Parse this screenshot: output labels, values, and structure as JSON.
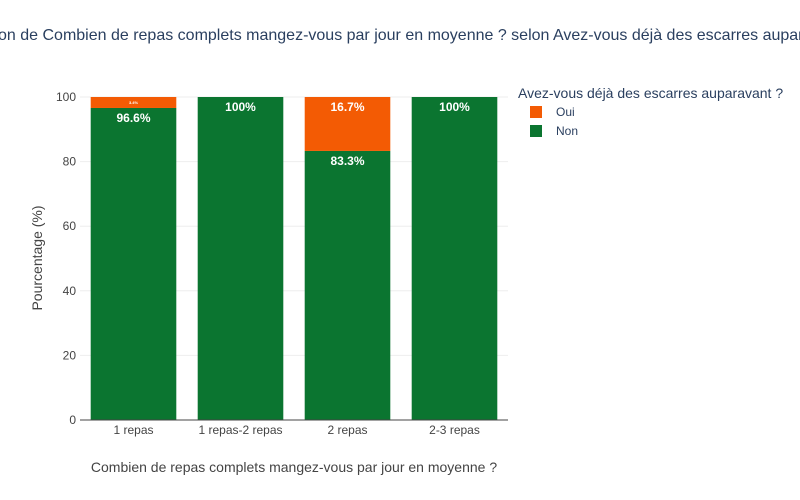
{
  "chart_data": {
    "type": "bar",
    "stacked": true,
    "title": "on de Combien de repas complets mangez-vous par jour en moyenne ? selon Avez-vous déjà des escarres aupar",
    "xlabel": "Combien de repas complets mangez-vous par jour en moyenne ?",
    "ylabel": "Pourcentage (%)",
    "ylim": [
      0,
      100
    ],
    "yticks": [
      "0",
      "20",
      "40",
      "60",
      "80",
      "100"
    ],
    "categories": [
      "1 repas",
      "1 repas-2 repas",
      "2 repas",
      "2-3 repas"
    ],
    "legend": {
      "title": "Avez-vous déjà des escarres auparavant ?",
      "position": "top-right"
    },
    "grid": true,
    "series": [
      {
        "name": "Non",
        "color": "#0b7530",
        "values": [
          96.6,
          100,
          83.3,
          100
        ],
        "labels": [
          "96.6%",
          "100%",
          "83.3%",
          "100%"
        ]
      },
      {
        "name": "Oui",
        "color": "#f35b04",
        "values": [
          3.4,
          0,
          16.7,
          0
        ],
        "labels": [
          "3.4%",
          "",
          "16.7%",
          ""
        ]
      }
    ],
    "legend_order": [
      "Oui",
      "Non"
    ]
  }
}
